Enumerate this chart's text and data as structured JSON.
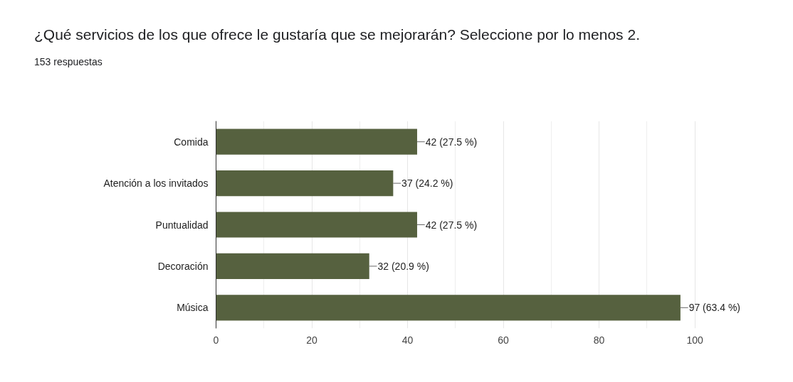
{
  "chart_data": {
    "type": "bar",
    "orientation": "horizontal",
    "title": "¿Qué servicios de los que ofrece le gustaría que se mejorarán? Seleccione por lo menos 2.",
    "subtitle": "153 respuestas",
    "categories": [
      "Comida",
      "Atención a los invitados",
      "Puntualidad",
      "Decoración",
      "Música"
    ],
    "values": [
      42,
      37,
      42,
      32,
      97
    ],
    "value_labels": [
      "42 (27.5 %)",
      "37 (24.2 %)",
      "42 (27.5 %)",
      "32 (20.9 %)",
      "97 (63.4 %)"
    ],
    "color": "#56613f",
    "xlim": [
      0,
      100
    ],
    "xticks": [
      0,
      20,
      40,
      60,
      80,
      100
    ],
    "grid": "x",
    "legend": false
  }
}
